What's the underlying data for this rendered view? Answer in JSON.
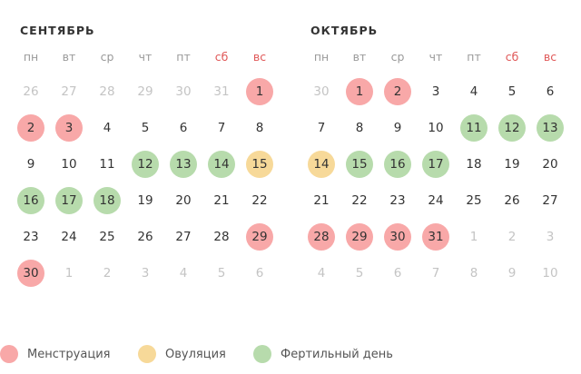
{
  "colors": {
    "menstruation": "#f8a8a8",
    "ovulation": "#f7d999",
    "fertile": "#b7dbac",
    "weekend_text": "#e05858"
  },
  "weekdays": [
    "пн",
    "вт",
    "ср",
    "чт",
    "пт",
    "сб",
    "вс"
  ],
  "months": [
    {
      "title": "СЕНТЯБРЬ",
      "rows": [
        [
          {
            "d": "26",
            "t": "other"
          },
          {
            "d": "27",
            "t": "other"
          },
          {
            "d": "28",
            "t": "other"
          },
          {
            "d": "29",
            "t": "other"
          },
          {
            "d": "30",
            "t": "other"
          },
          {
            "d": "31",
            "t": "other"
          },
          {
            "d": "1",
            "t": "menstruation"
          }
        ],
        [
          {
            "d": "2",
            "t": "menstruation"
          },
          {
            "d": "3",
            "t": "menstruation"
          },
          {
            "d": "4",
            "t": ""
          },
          {
            "d": "5",
            "t": ""
          },
          {
            "d": "6",
            "t": ""
          },
          {
            "d": "7",
            "t": ""
          },
          {
            "d": "8",
            "t": ""
          }
        ],
        [
          {
            "d": "9",
            "t": ""
          },
          {
            "d": "10",
            "t": ""
          },
          {
            "d": "11",
            "t": ""
          },
          {
            "d": "12",
            "t": "fertile"
          },
          {
            "d": "13",
            "t": "fertile"
          },
          {
            "d": "14",
            "t": "fertile"
          },
          {
            "d": "15",
            "t": "ovulation"
          }
        ],
        [
          {
            "d": "16",
            "t": "fertile"
          },
          {
            "d": "17",
            "t": "fertile"
          },
          {
            "d": "18",
            "t": "fertile"
          },
          {
            "d": "19",
            "t": ""
          },
          {
            "d": "20",
            "t": ""
          },
          {
            "d": "21",
            "t": ""
          },
          {
            "d": "22",
            "t": ""
          }
        ],
        [
          {
            "d": "23",
            "t": ""
          },
          {
            "d": "24",
            "t": ""
          },
          {
            "d": "25",
            "t": ""
          },
          {
            "d": "26",
            "t": ""
          },
          {
            "d": "27",
            "t": ""
          },
          {
            "d": "28",
            "t": ""
          },
          {
            "d": "29",
            "t": "menstruation"
          }
        ],
        [
          {
            "d": "30",
            "t": "menstruation"
          },
          {
            "d": "1",
            "t": "other"
          },
          {
            "d": "2",
            "t": "other"
          },
          {
            "d": "3",
            "t": "other"
          },
          {
            "d": "4",
            "t": "other"
          },
          {
            "d": "5",
            "t": "other"
          },
          {
            "d": "6",
            "t": "other"
          }
        ]
      ]
    },
    {
      "title": "ОКТЯБРЬ",
      "rows": [
        [
          {
            "d": "30",
            "t": "other"
          },
          {
            "d": "1",
            "t": "menstruation"
          },
          {
            "d": "2",
            "t": "menstruation"
          },
          {
            "d": "3",
            "t": ""
          },
          {
            "d": "4",
            "t": ""
          },
          {
            "d": "5",
            "t": ""
          },
          {
            "d": "6",
            "t": ""
          }
        ],
        [
          {
            "d": "7",
            "t": ""
          },
          {
            "d": "8",
            "t": ""
          },
          {
            "d": "9",
            "t": ""
          },
          {
            "d": "10",
            "t": ""
          },
          {
            "d": "11",
            "t": "fertile"
          },
          {
            "d": "12",
            "t": "fertile"
          },
          {
            "d": "13",
            "t": "fertile"
          }
        ],
        [
          {
            "d": "14",
            "t": "ovulation"
          },
          {
            "d": "15",
            "t": "fertile"
          },
          {
            "d": "16",
            "t": "fertile"
          },
          {
            "d": "17",
            "t": "fertile"
          },
          {
            "d": "18",
            "t": ""
          },
          {
            "d": "19",
            "t": ""
          },
          {
            "d": "20",
            "t": ""
          }
        ],
        [
          {
            "d": "21",
            "t": ""
          },
          {
            "d": "22",
            "t": ""
          },
          {
            "d": "23",
            "t": ""
          },
          {
            "d": "24",
            "t": ""
          },
          {
            "d": "25",
            "t": ""
          },
          {
            "d": "26",
            "t": ""
          },
          {
            "d": "27",
            "t": ""
          }
        ],
        [
          {
            "d": "28",
            "t": "menstruation"
          },
          {
            "d": "29",
            "t": "menstruation"
          },
          {
            "d": "30",
            "t": "menstruation"
          },
          {
            "d": "31",
            "t": "menstruation"
          },
          {
            "d": "1",
            "t": "other"
          },
          {
            "d": "2",
            "t": "other"
          },
          {
            "d": "3",
            "t": "other"
          }
        ],
        [
          {
            "d": "4",
            "t": "other"
          },
          {
            "d": "5",
            "t": "other"
          },
          {
            "d": "6",
            "t": "other"
          },
          {
            "d": "7",
            "t": "other"
          },
          {
            "d": "8",
            "t": "other"
          },
          {
            "d": "9",
            "t": "other"
          },
          {
            "d": "10",
            "t": "other"
          }
        ]
      ]
    }
  ],
  "legend": [
    {
      "key": "menstruation",
      "label": "Менструация"
    },
    {
      "key": "ovulation",
      "label": "Овуляция"
    },
    {
      "key": "fertile",
      "label": "Фертильный день"
    }
  ]
}
